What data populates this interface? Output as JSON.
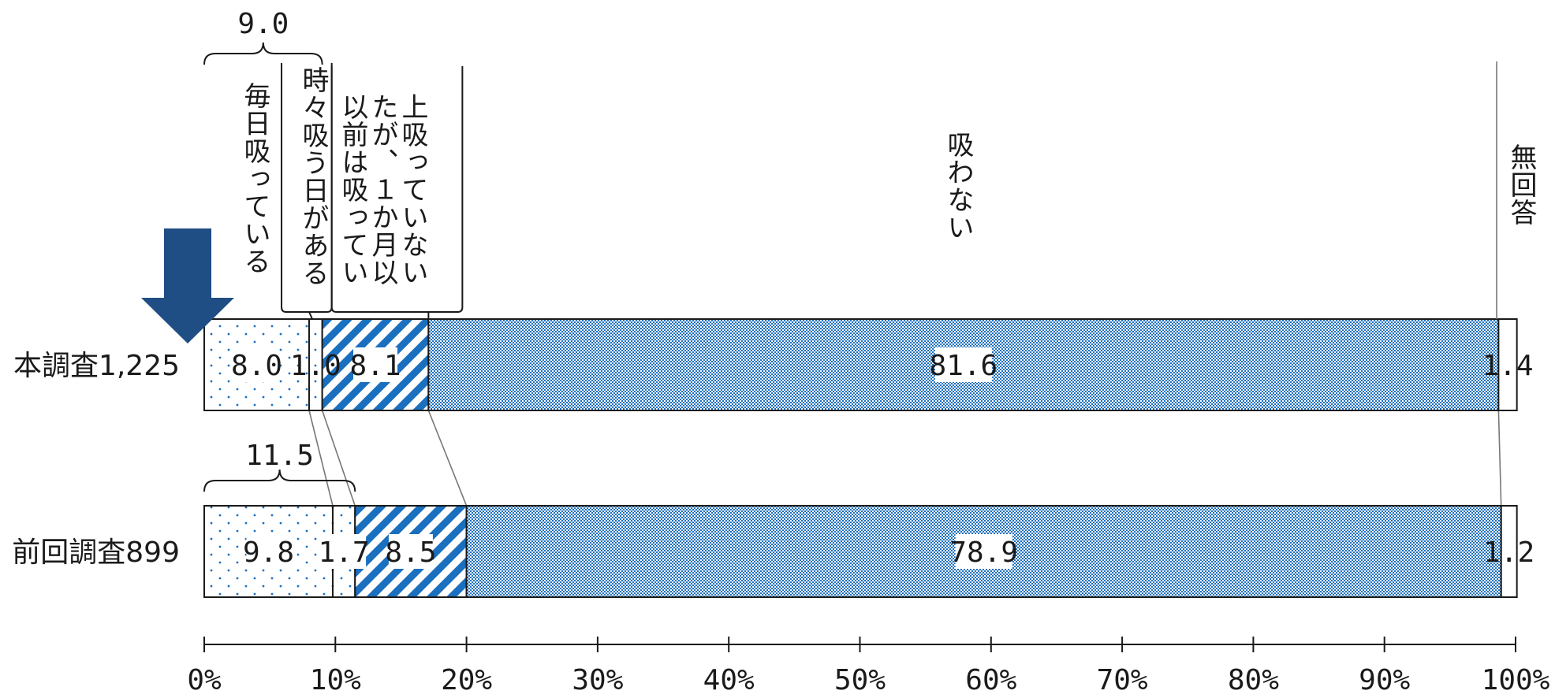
{
  "chart_data": {
    "type": "bar",
    "orientation": "horizontal",
    "stacked": true,
    "categories": [
      "本調査1,225",
      "前回調査899"
    ],
    "series": [
      {
        "name": "毎日吸っている",
        "values": [
          8.0,
          9.8
        ],
        "labels": [
          "8.0",
          "9.8"
        ],
        "pattern": "dots"
      },
      {
        "name": "時々吸う日がある",
        "values": [
          1.0,
          1.7
        ],
        "labels": [
          "1.0",
          "1.7"
        ],
        "pattern": "dots"
      },
      {
        "name": "以前は吸っていたが、１か月以上吸っていない",
        "values": [
          8.1,
          8.5
        ],
        "labels": [
          "8.1",
          "8.5"
        ],
        "pattern": "diagonal-stripes"
      },
      {
        "name": "吸わない",
        "values": [
          81.6,
          78.9
        ],
        "labels": [
          "81.6",
          "78.9"
        ],
        "pattern": "dense-dots"
      },
      {
        "name": "無回答",
        "values": [
          1.4,
          1.2
        ],
        "labels": [
          "1.4",
          "1.2"
        ],
        "pattern": "none"
      }
    ],
    "bracket_totals": [
      {
        "category": "本調査1,225",
        "label": "9.0",
        "value": 9.0
      },
      {
        "category": "前回調査899",
        "label": "11.5",
        "value": 11.5
      }
    ],
    "series_headers": [
      "毎日吸っている",
      "時々吸う日がある",
      "上吸っていない\nたが、１か月以\n以前は吸ってい",
      "吸わない",
      "無回答"
    ],
    "xlim": [
      0,
      100
    ],
    "xticks": [
      "0%",
      "10%",
      "20%",
      "30%",
      "40%",
      "50%",
      "60%",
      "70%",
      "80%",
      "90%",
      "100%"
    ],
    "colors": {
      "accent": "#1a6fbf",
      "arrow": "#1f4e84",
      "line": "#1a1a1a",
      "connector": "#777777"
    },
    "legend": "none",
    "grid": false
  }
}
